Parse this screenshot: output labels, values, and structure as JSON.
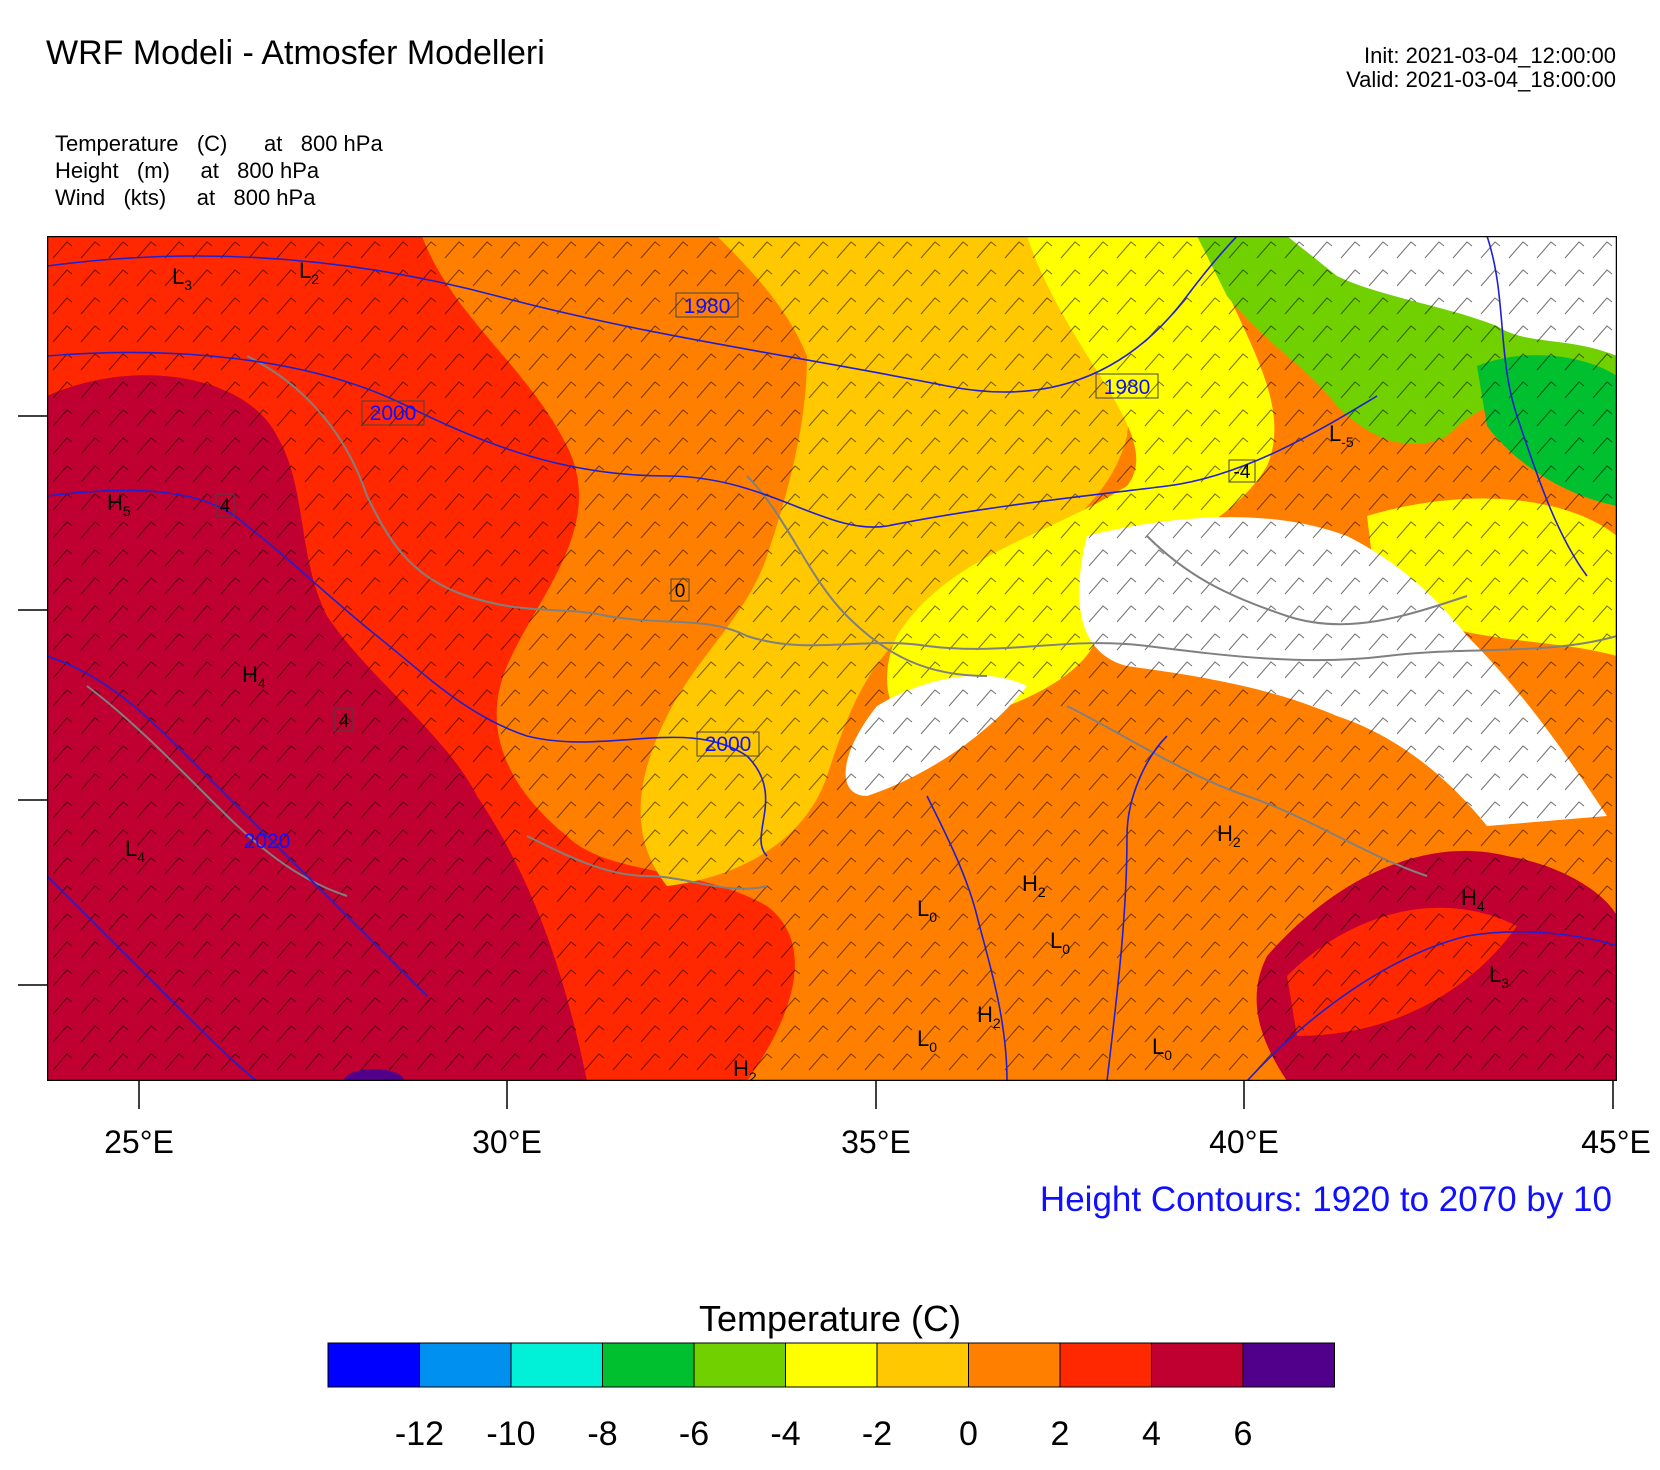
{
  "title": "WRF Modeli - Atmosfer Modelleri",
  "init": "Init: 2021-03-04_12:00:00",
  "valid": "Valid: 2021-03-04_18:00:00",
  "fields": [
    "Temperature   (C)      at   800 hPa",
    "Height   (m)     at   800 hPa",
    "Wind   (kts)     at   800 hPa"
  ],
  "lon_ticks": [
    "25°E",
    "30°E",
    "35°E",
    "40°E",
    "45°E"
  ],
  "contour_note": "Height Contours: 1920 to 2070 by 10",
  "colorbar": {
    "title": "Temperature  (C)",
    "labels": [
      "-12",
      "-10",
      "-8",
      "-6",
      "-4",
      "-2",
      "0",
      "2",
      "4",
      "6"
    ],
    "colors": [
      "#0000ff",
      "#0090f0",
      "#00f0d8",
      "#00c030",
      "#70d000",
      "#ffff00",
      "#ffc800",
      "#ff8000",
      "#ff2800",
      "#c00030",
      "#50008a"
    ]
  },
  "contour_labels": [
    "1980",
    "1980",
    "2000",
    "2000",
    "2020",
    "4",
    "4",
    "0",
    "-4"
  ],
  "pressure_centers": [
    {
      "letter": "L",
      "sub": "3"
    },
    {
      "letter": "L",
      "sub": "2"
    },
    {
      "letter": "H",
      "sub": "5"
    },
    {
      "letter": "H",
      "sub": "4"
    },
    {
      "letter": "L",
      "sub": "4"
    },
    {
      "letter": "L",
      "sub": "-5"
    },
    {
      "letter": "H",
      "sub": "2"
    },
    {
      "letter": "H",
      "sub": "2"
    },
    {
      "letter": "L",
      "sub": "0"
    },
    {
      "letter": "L",
      "sub": "0"
    },
    {
      "letter": "H",
      "sub": "2"
    },
    {
      "letter": "L",
      "sub": "0"
    },
    {
      "letter": "L",
      "sub": "0"
    },
    {
      "letter": "H",
      "sub": "4"
    },
    {
      "letter": "L",
      "sub": "3"
    },
    {
      "letter": "H",
      "sub": "2"
    }
  ]
}
